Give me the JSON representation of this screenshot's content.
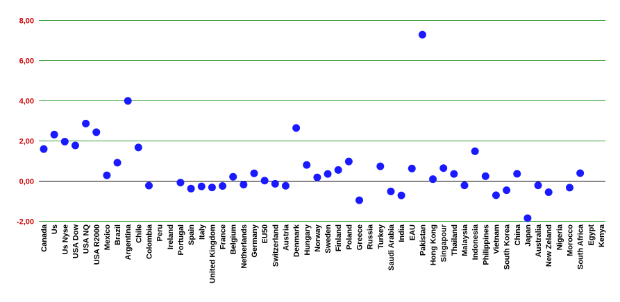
{
  "chart_data": {
    "type": "scatter",
    "categories": [
      "Canada",
      "Us",
      "Us Nyse",
      "USA Dow",
      "USA NQ",
      "USA R2000",
      "Mexico",
      "Brazil",
      "Argentina",
      "Chile",
      "Colombia",
      "Peru",
      "Ireland",
      "Portugal",
      "Spain",
      "Italy",
      "United Kingdom",
      "France",
      "Belgium",
      "Netherlands",
      "Germany",
      "EU50",
      "Switzerland",
      "Austria",
      "Denmark",
      "Hungary",
      "Norway",
      "Sweden",
      "Finland",
      "Poland",
      "Greece",
      "Russia",
      "Turkey",
      "Saudi Arabia",
      "India",
      "EAU",
      "Pakistan",
      "Hong Kong",
      "Singapour",
      "Thailand",
      "Malaysia",
      "Indonesia",
      "Philippines",
      "Vietnam",
      "South Korea",
      "China",
      "Japan",
      "Australia",
      "New Zeland",
      "Nigeria",
      "Morocco",
      "South Africa",
      "Egypt",
      "Kenya"
    ],
    "values": [
      1.58,
      2.3,
      1.95,
      1.76,
      2.85,
      2.42,
      0.27,
      0.9,
      3.98,
      1.66,
      -0.24,
      null,
      null,
      -0.09,
      -0.39,
      -0.28,
      -0.33,
      -0.26,
      0.2,
      -0.19,
      0.37,
      0.01,
      -0.15,
      -0.25,
      2.63,
      0.79,
      0.17,
      0.34,
      0.54,
      0.96,
      -0.97,
      null,
      0.72,
      -0.53,
      -0.73,
      0.61,
      7.27,
      0.08,
      0.63,
      0.34,
      -0.23,
      1.47,
      0.23,
      -0.72,
      -0.47,
      0.35,
      -1.86,
      -0.23,
      -0.57,
      null,
      -0.34,
      0.38,
      null,
      null
    ],
    "ylim": [
      -2,
      8
    ],
    "yticks": [
      "-2,00",
      "0,00",
      "2,00",
      "4,00",
      "6,00",
      "8,00"
    ],
    "ytick_values": [
      -2,
      0,
      2,
      4,
      6,
      8
    ],
    "grid": true,
    "colors": {
      "marker": "#1a1aff",
      "grid": "#339933",
      "zero_line": "#000000",
      "ytick_text": "#cc0000"
    }
  }
}
